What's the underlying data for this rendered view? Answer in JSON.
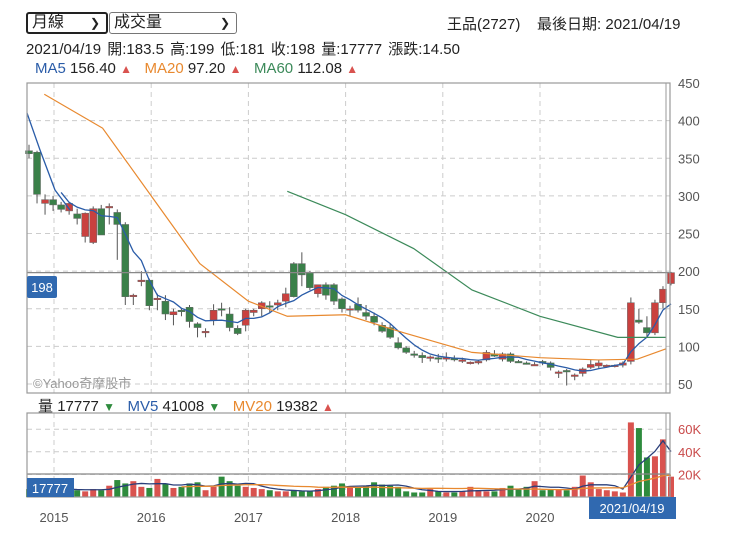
{
  "controls": {
    "period_select": "月線",
    "indicator_select": "成交量"
  },
  "header": {
    "stock": "王品(2727)",
    "last_date_label": "最後日期: 2021/04/19",
    "ohlc_line": "2021/04/19  開:183.5  高:199  低:181  收:198  量:17777  漲跌:14.50"
  },
  "ma_legend": [
    {
      "name": "MA5",
      "value": "156.40",
      "color": "#2a5ca8",
      "trend": "up"
    },
    {
      "name": "MA20",
      "value": "97.20",
      "color": "#e8892f",
      "trend": "up"
    },
    {
      "name": "MA60",
      "value": "112.08",
      "color": "#3c8a5a",
      "trend": "up"
    }
  ],
  "vol_legend": [
    {
      "name": "量",
      "value": "17777",
      "color": "#222",
      "trend": "down"
    },
    {
      "name": "MV5",
      "value": "41008",
      "color": "#2a5ca8",
      "trend": "down"
    },
    {
      "name": "MV20",
      "value": "19382",
      "color": "#e8892f",
      "trend": "up"
    }
  ],
  "watermark": "©Yahoo奇摩股市",
  "price_tag": "198",
  "volume_tag": "17777",
  "date_tag": "2021/04/19",
  "chart_data": [
    {
      "type": "candlestick",
      "title": "王品(2727) 月線",
      "y_ticks": [
        450,
        400,
        350,
        300,
        250,
        200,
        150,
        100,
        50
      ],
      "ylim": [
        35,
        450
      ],
      "x_ticks": [
        "2015",
        "2016",
        "2017",
        "2018",
        "2019",
        "2020"
      ],
      "current_price_line": 198,
      "series_ma": {
        "MA5_last": 156.4,
        "MA20_last": 97.2,
        "MA60_last": 112.08
      },
      "ma60_approx": [
        [
          2017.4,
          306
        ],
        [
          2018.0,
          275
        ],
        [
          2018.7,
          230
        ],
        [
          2019.3,
          175
        ],
        [
          2020.0,
          140
        ],
        [
          2020.8,
          112
        ],
        [
          2021.3,
          112
        ]
      ],
      "ma20_approx": [
        [
          2014.9,
          435
        ],
        [
          2015.5,
          390
        ],
        [
          2016.0,
          300
        ],
        [
          2016.5,
          210
        ],
        [
          2017.0,
          160
        ],
        [
          2017.4,
          140
        ],
        [
          2018.0,
          142
        ],
        [
          2018.6,
          118
        ],
        [
          2019.3,
          92
        ],
        [
          2020.0,
          85
        ],
        [
          2020.6,
          82
        ],
        [
          2021.0,
          83
        ],
        [
          2021.3,
          97
        ]
      ]
    },
    {
      "type": "bar",
      "title": "成交量",
      "y_ticks": [
        "20K",
        "40K",
        "60K"
      ],
      "last_volume": 17777,
      "MV5_last": 41008,
      "MV20_last": 19382
    }
  ]
}
